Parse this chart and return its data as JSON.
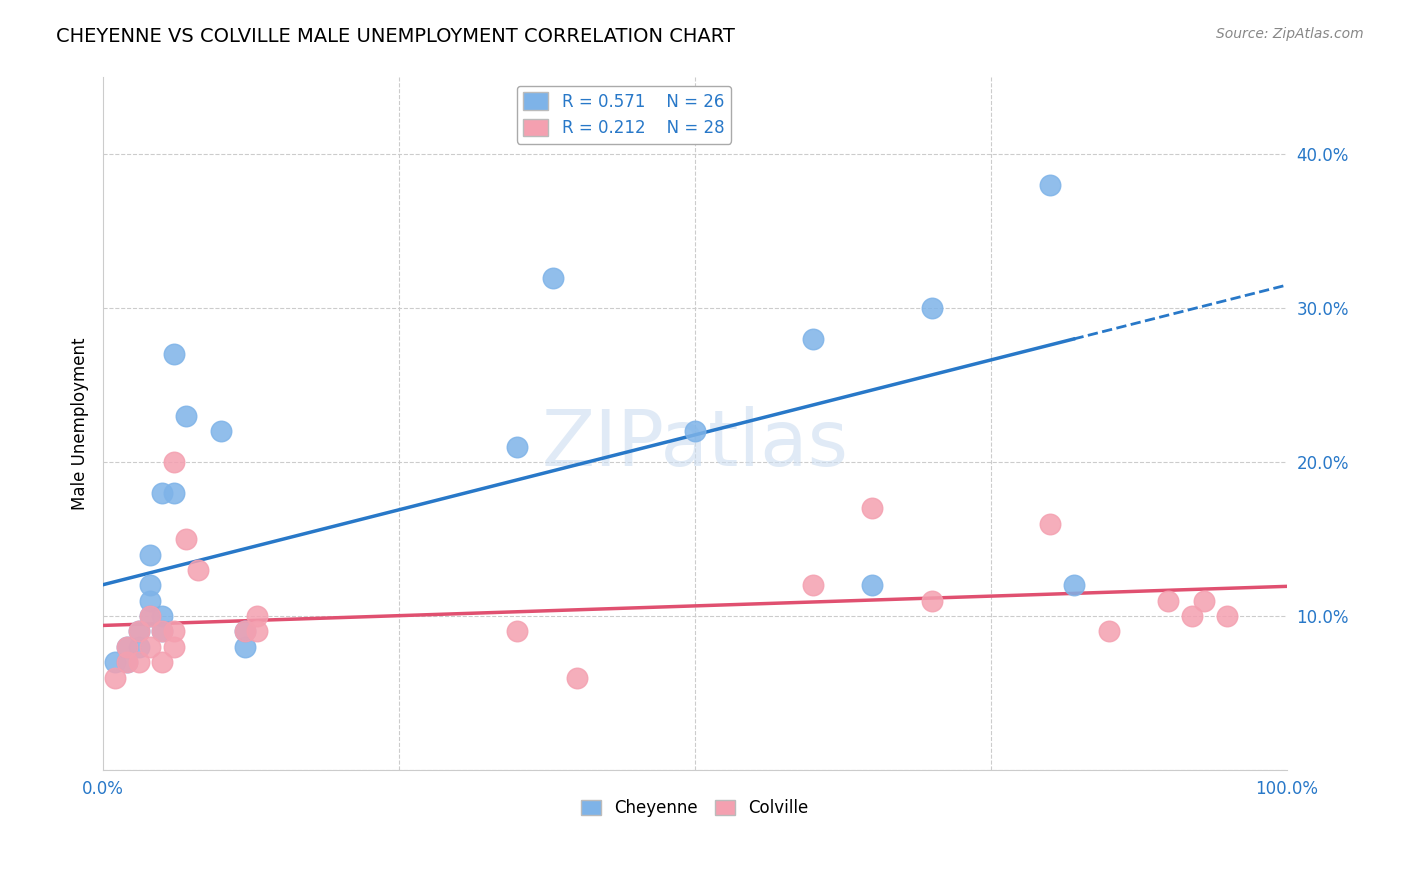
{
  "title": "CHEYENNE VS COLVILLE MALE UNEMPLOYMENT CORRELATION CHART",
  "source_text": "Source: ZipAtlas.com",
  "ylabel": "Male Unemployment",
  "xlim": [
    0.0,
    1.0
  ],
  "ylim": [
    0.0,
    0.45
  ],
  "cheyenne_R": 0.571,
  "cheyenne_N": 26,
  "colville_R": 0.212,
  "colville_N": 28,
  "cheyenne_color": "#7eb3e8",
  "colville_color": "#f4a0b0",
  "cheyenne_line_color": "#2878c8",
  "colville_line_color": "#e05070",
  "cheyenne_x": [
    0.01,
    0.02,
    0.02,
    0.03,
    0.03,
    0.04,
    0.04,
    0.04,
    0.04,
    0.05,
    0.05,
    0.05,
    0.06,
    0.06,
    0.07,
    0.1,
    0.12,
    0.12,
    0.35,
    0.38,
    0.5,
    0.6,
    0.65,
    0.7,
    0.8,
    0.82
  ],
  "cheyenne_y": [
    0.07,
    0.07,
    0.08,
    0.08,
    0.09,
    0.1,
    0.11,
    0.12,
    0.14,
    0.09,
    0.1,
    0.18,
    0.18,
    0.27,
    0.23,
    0.22,
    0.08,
    0.09,
    0.21,
    0.32,
    0.22,
    0.28,
    0.12,
    0.3,
    0.38,
    0.12
  ],
  "colville_x": [
    0.01,
    0.02,
    0.02,
    0.03,
    0.03,
    0.04,
    0.04,
    0.05,
    0.05,
    0.06,
    0.06,
    0.06,
    0.07,
    0.08,
    0.12,
    0.13,
    0.13,
    0.35,
    0.4,
    0.6,
    0.65,
    0.7,
    0.8,
    0.85,
    0.9,
    0.92,
    0.93,
    0.95
  ],
  "colville_y": [
    0.06,
    0.07,
    0.08,
    0.07,
    0.09,
    0.08,
    0.1,
    0.07,
    0.09,
    0.08,
    0.09,
    0.2,
    0.15,
    0.13,
    0.09,
    0.09,
    0.1,
    0.09,
    0.06,
    0.12,
    0.17,
    0.11,
    0.16,
    0.09,
    0.11,
    0.1,
    0.11,
    0.1
  ],
  "watermark_text": "ZIPatlas",
  "ytick_vals": [
    0.0,
    0.1,
    0.2,
    0.3,
    0.4
  ],
  "ytick_labels": [
    "",
    "10.0%",
    "20.0%",
    "30.0%",
    "40.0%"
  ],
  "grid_color": "#cccccc",
  "background_color": "#ffffff"
}
